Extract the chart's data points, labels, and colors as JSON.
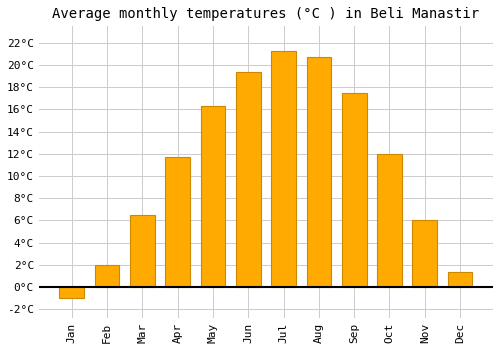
{
  "title": "Average monthly temperatures (°C ) in Beli Manastir",
  "months": [
    "Jan",
    "Feb",
    "Mar",
    "Apr",
    "May",
    "Jun",
    "Jul",
    "Aug",
    "Sep",
    "Oct",
    "Nov",
    "Dec"
  ],
  "values": [
    -1.0,
    2.0,
    6.5,
    11.7,
    16.3,
    19.4,
    21.3,
    20.7,
    17.5,
    12.0,
    6.0,
    1.3
  ],
  "bar_color": "#FFAA00",
  "bar_edge_color": "#CC8800",
  "background_color": "#FFFFFF",
  "grid_color": "#CCCCCC",
  "ylim": [
    -2.8,
    23.5
  ],
  "yticks": [
    -2,
    0,
    2,
    4,
    6,
    8,
    10,
    12,
    14,
    16,
    18,
    20,
    22
  ],
  "ytick_labels": [
    "-2°C",
    "0°C",
    "2°C",
    "4°C",
    "6°C",
    "8°C",
    "10°C",
    "12°C",
    "14°C",
    "16°C",
    "18°C",
    "20°C",
    "22°C"
  ],
  "title_fontsize": 10,
  "tick_fontsize": 8,
  "font_family": "monospace"
}
